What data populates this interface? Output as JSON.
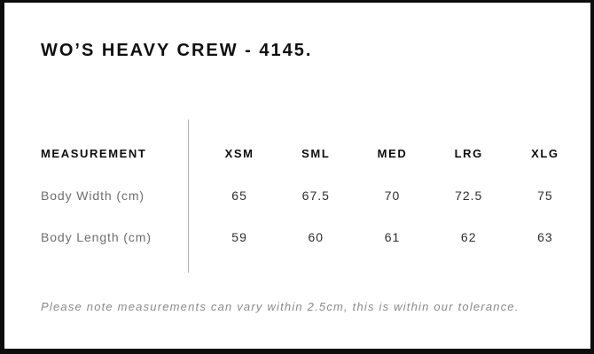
{
  "page": {
    "title": "WO’S HEAVY CREW - 4145."
  },
  "table": {
    "header_label": "MEASUREMENT",
    "sizes": [
      "XSM",
      "SML",
      "MED",
      "LRG",
      "XLG"
    ],
    "rows": [
      {
        "label": "Body Width (cm)",
        "values": [
          "65",
          "67.5",
          "70",
          "72.5",
          "75"
        ]
      },
      {
        "label": "Body Length (cm)",
        "values": [
          "59",
          "60",
          "61",
          "62",
          "63"
        ]
      }
    ]
  },
  "note": {
    "text": "Please note measurements can vary within 2.5cm, this is within our tolerance."
  },
  "colors": {
    "border": "#0d0d0d",
    "title_text": "#0f0f0f",
    "header_text": "#0d0d0d",
    "row_label_text": "#6e6e6e",
    "value_text": "#2f2f2f",
    "divider": "#b5b5b5",
    "note_text": "#8a8a8a",
    "background": "#ffffff"
  }
}
